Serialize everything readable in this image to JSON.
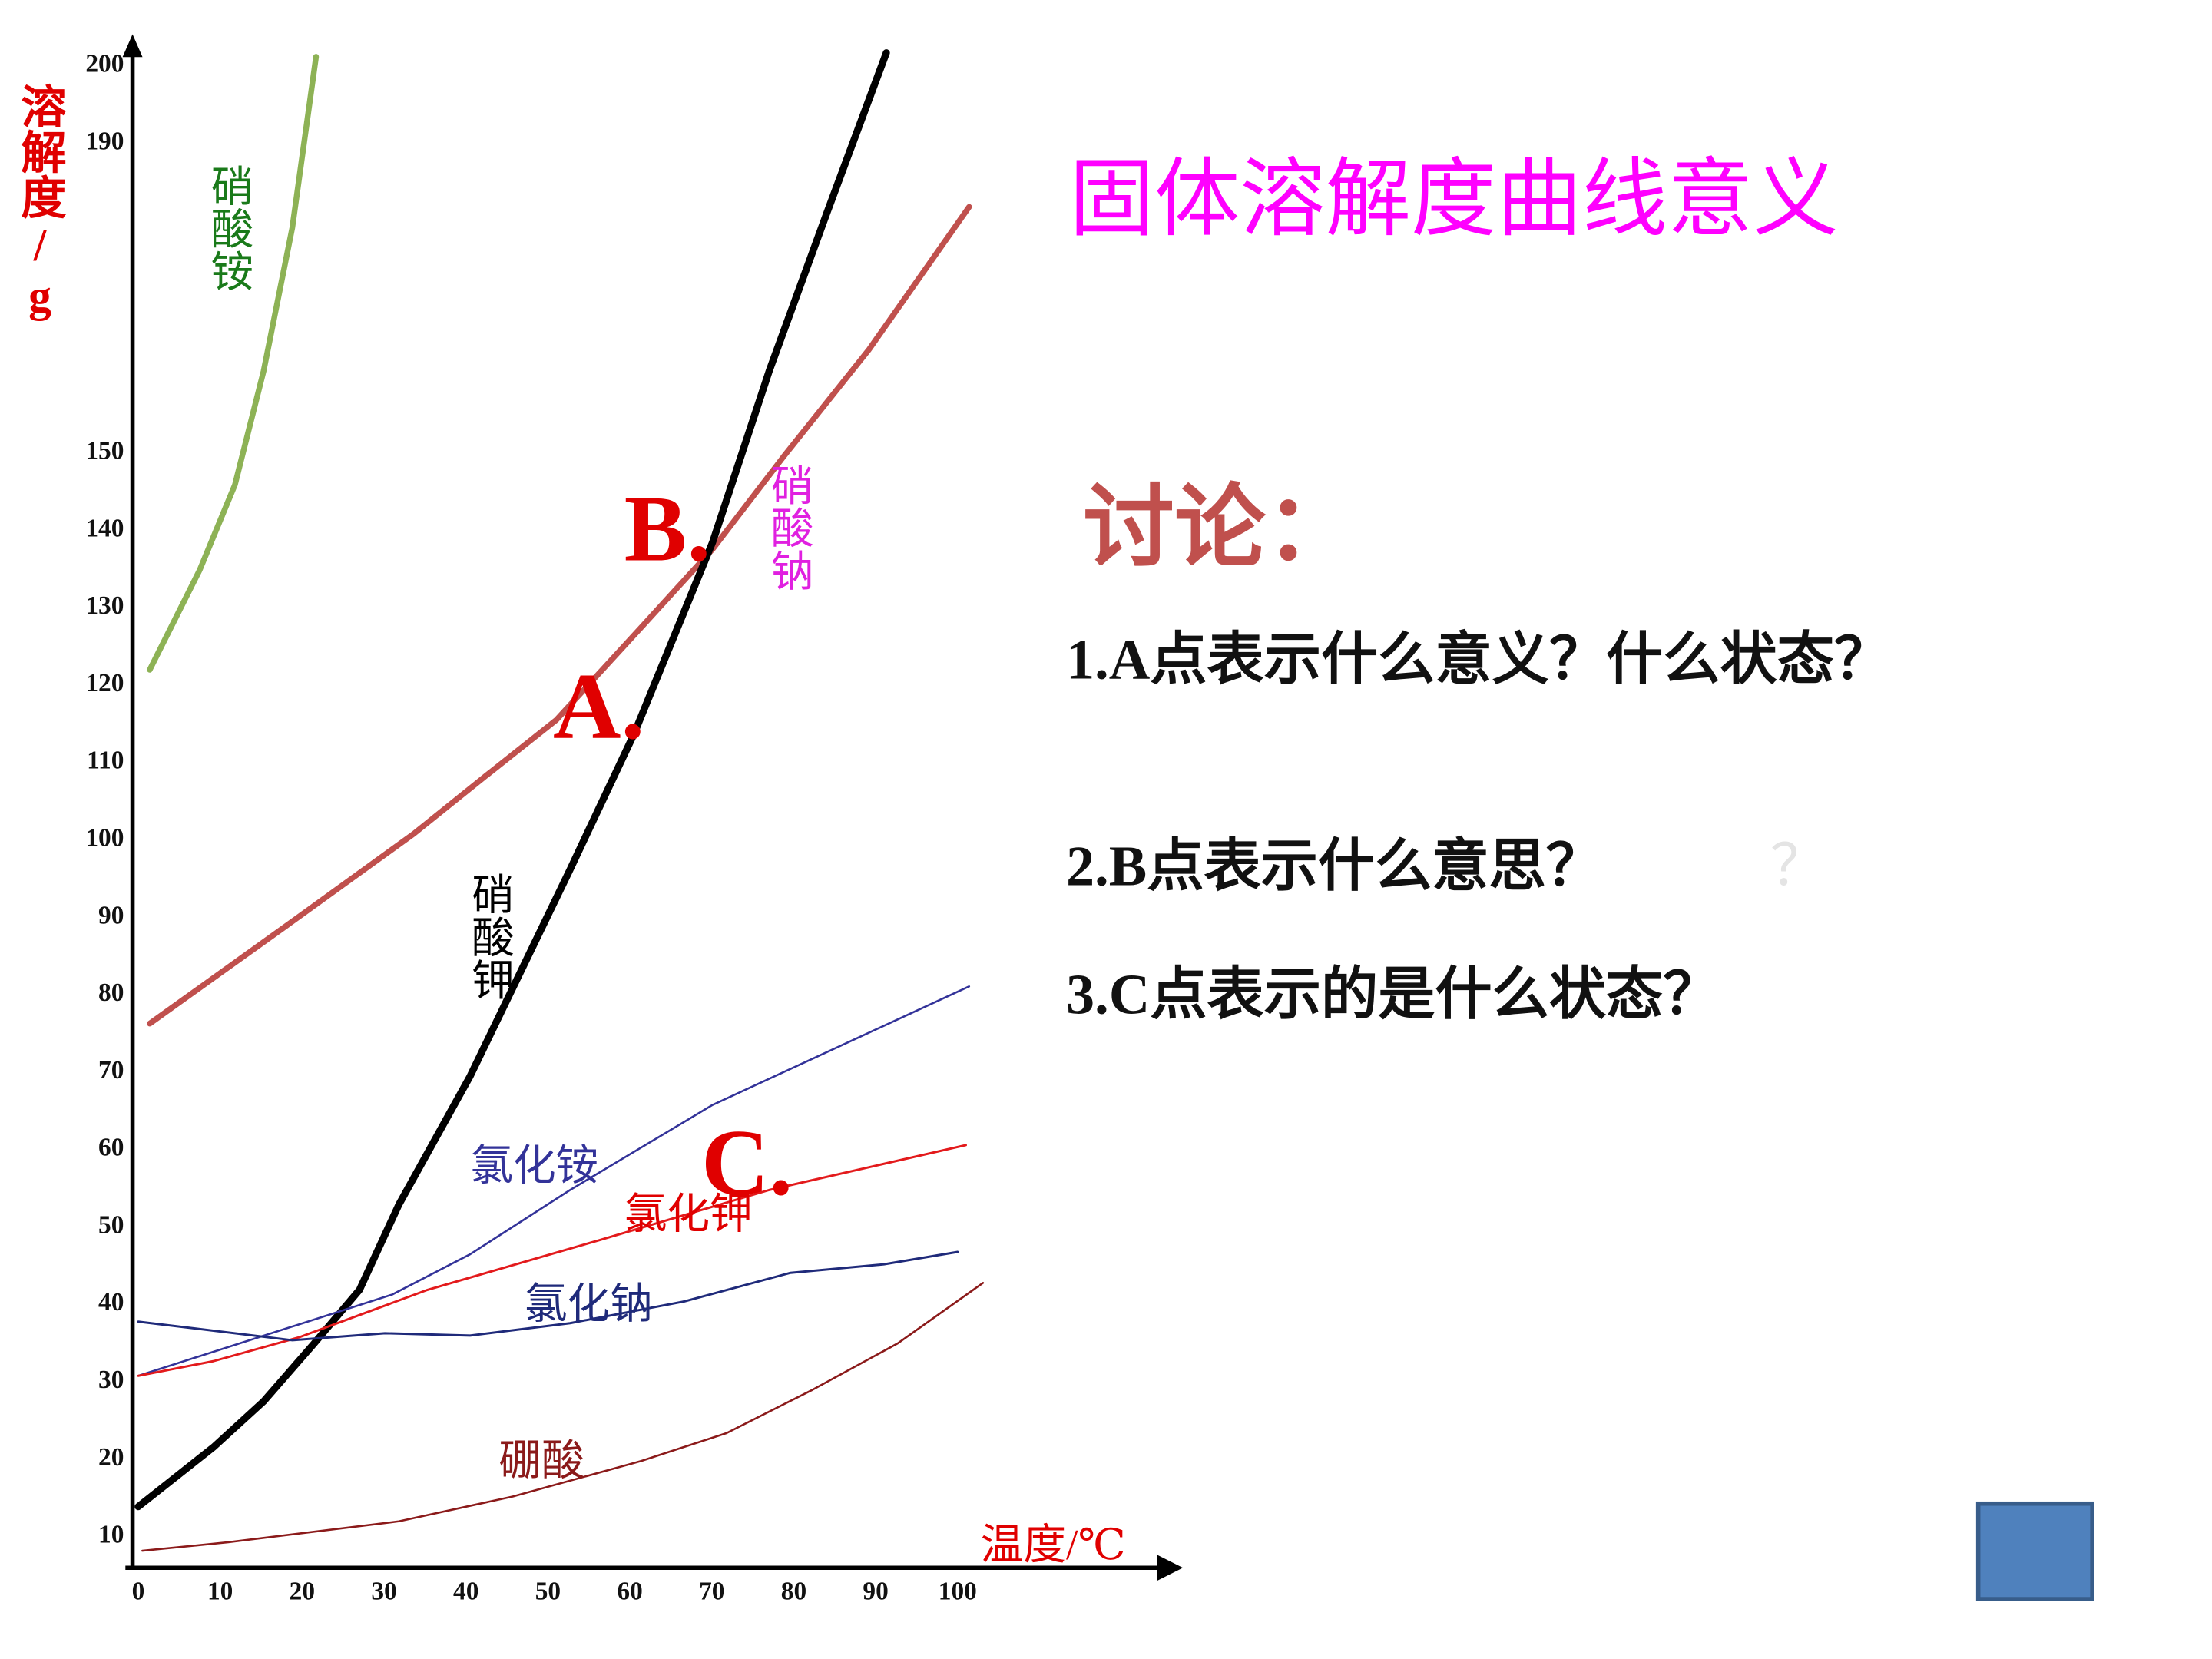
{
  "slide": {
    "title": "固体溶解度曲线意义",
    "discussion": "讨论：",
    "questions": [
      "1.A点表示什么意义？什么状态？",
      "2.B点表示什么意思？",
      "3.C点表示的是什么状态？"
    ],
    "faint_mark": "？"
  },
  "chart_data": {
    "type": "line",
    "y_label": "溶解度/g",
    "x_label": "温度/℃",
    "xlim": [
      0,
      127.5
    ],
    "ylim": [
      6,
      203
    ],
    "xticks": [
      0,
      10,
      20,
      30,
      40,
      50,
      60,
      70,
      80,
      90,
      100
    ],
    "yticks": [
      10,
      20,
      30,
      40,
      50,
      60,
      70,
      80,
      90,
      100,
      110,
      120,
      130,
      140,
      150,
      190,
      200
    ],
    "annotations": [
      "A.",
      "B.",
      "C."
    ],
    "series": [
      {
        "name": "硝酸铵",
        "color": "#8db255",
        "x": [
          1.4,
          7.5,
          11.8,
          15.3,
          18.8,
          21.7
        ],
        "values": [
          122,
          134.9,
          145.9,
          160.6,
          179.1,
          201.2
        ]
      },
      {
        "name": "硝酸钠",
        "color": "#c0504d",
        "x": [
          1.4,
          17.9,
          33.6,
          42.3,
          51,
          61.4,
          70.1,
          78.8,
          89.2,
          101.4
        ],
        "values": [
          76.3,
          88.8,
          100.8,
          108.2,
          115.5,
          127.5,
          137.6,
          149.6,
          163.4,
          181.8
        ]
      },
      {
        "name": "硝酸钾",
        "color": "#000000",
        "x": [
          0,
          9.2,
          15.3,
          21.4,
          27,
          31.8,
          40.5,
          52.7,
          60.5,
          70.1,
          77,
          84,
          91.3
        ],
        "values": [
          13.9,
          21.6,
          27.5,
          34.9,
          41.9,
          52.9,
          69.5,
          96.2,
          113.7,
          138.5,
          160.6,
          180.9,
          201.7
        ]
      },
      {
        "name": "氯化铵",
        "color": "#333399",
        "x": [
          0,
          31,
          40.5,
          52.7,
          70.1,
          101.4
        ],
        "values": [
          30.8,
          41.3,
          46.5,
          54.8,
          65.8,
          81.1
        ]
      },
      {
        "name": "氯化钾",
        "color": "#e31a1c",
        "x": [
          0,
          9.2,
          19.7,
          35.3,
          56.2,
          77,
          101
        ],
        "values": [
          30.8,
          32.7,
          35.8,
          41.9,
          48.3,
          54.8,
          60.6
        ]
      },
      {
        "name": "氯化钠",
        "color": "#1f2a7a",
        "x": [
          0,
          18.8,
          30.1,
          40.5,
          52.7,
          66.6,
          79.6,
          91,
          100
        ],
        "values": [
          37.8,
          35.4,
          36.3,
          36,
          37.6,
          40.4,
          44.1,
          45.2,
          46.8
        ]
      },
      {
        "name": "硼酸",
        "color": "#8b1a1a",
        "x": [
          0.5,
          11,
          31.8,
          45.7,
          61.4,
          71.8,
          82.3,
          92.7,
          103.1
        ],
        "values": [
          8.2,
          9.3,
          12,
          15.2,
          19.8,
          23.4,
          29,
          35,
          42.8
        ]
      }
    ]
  }
}
